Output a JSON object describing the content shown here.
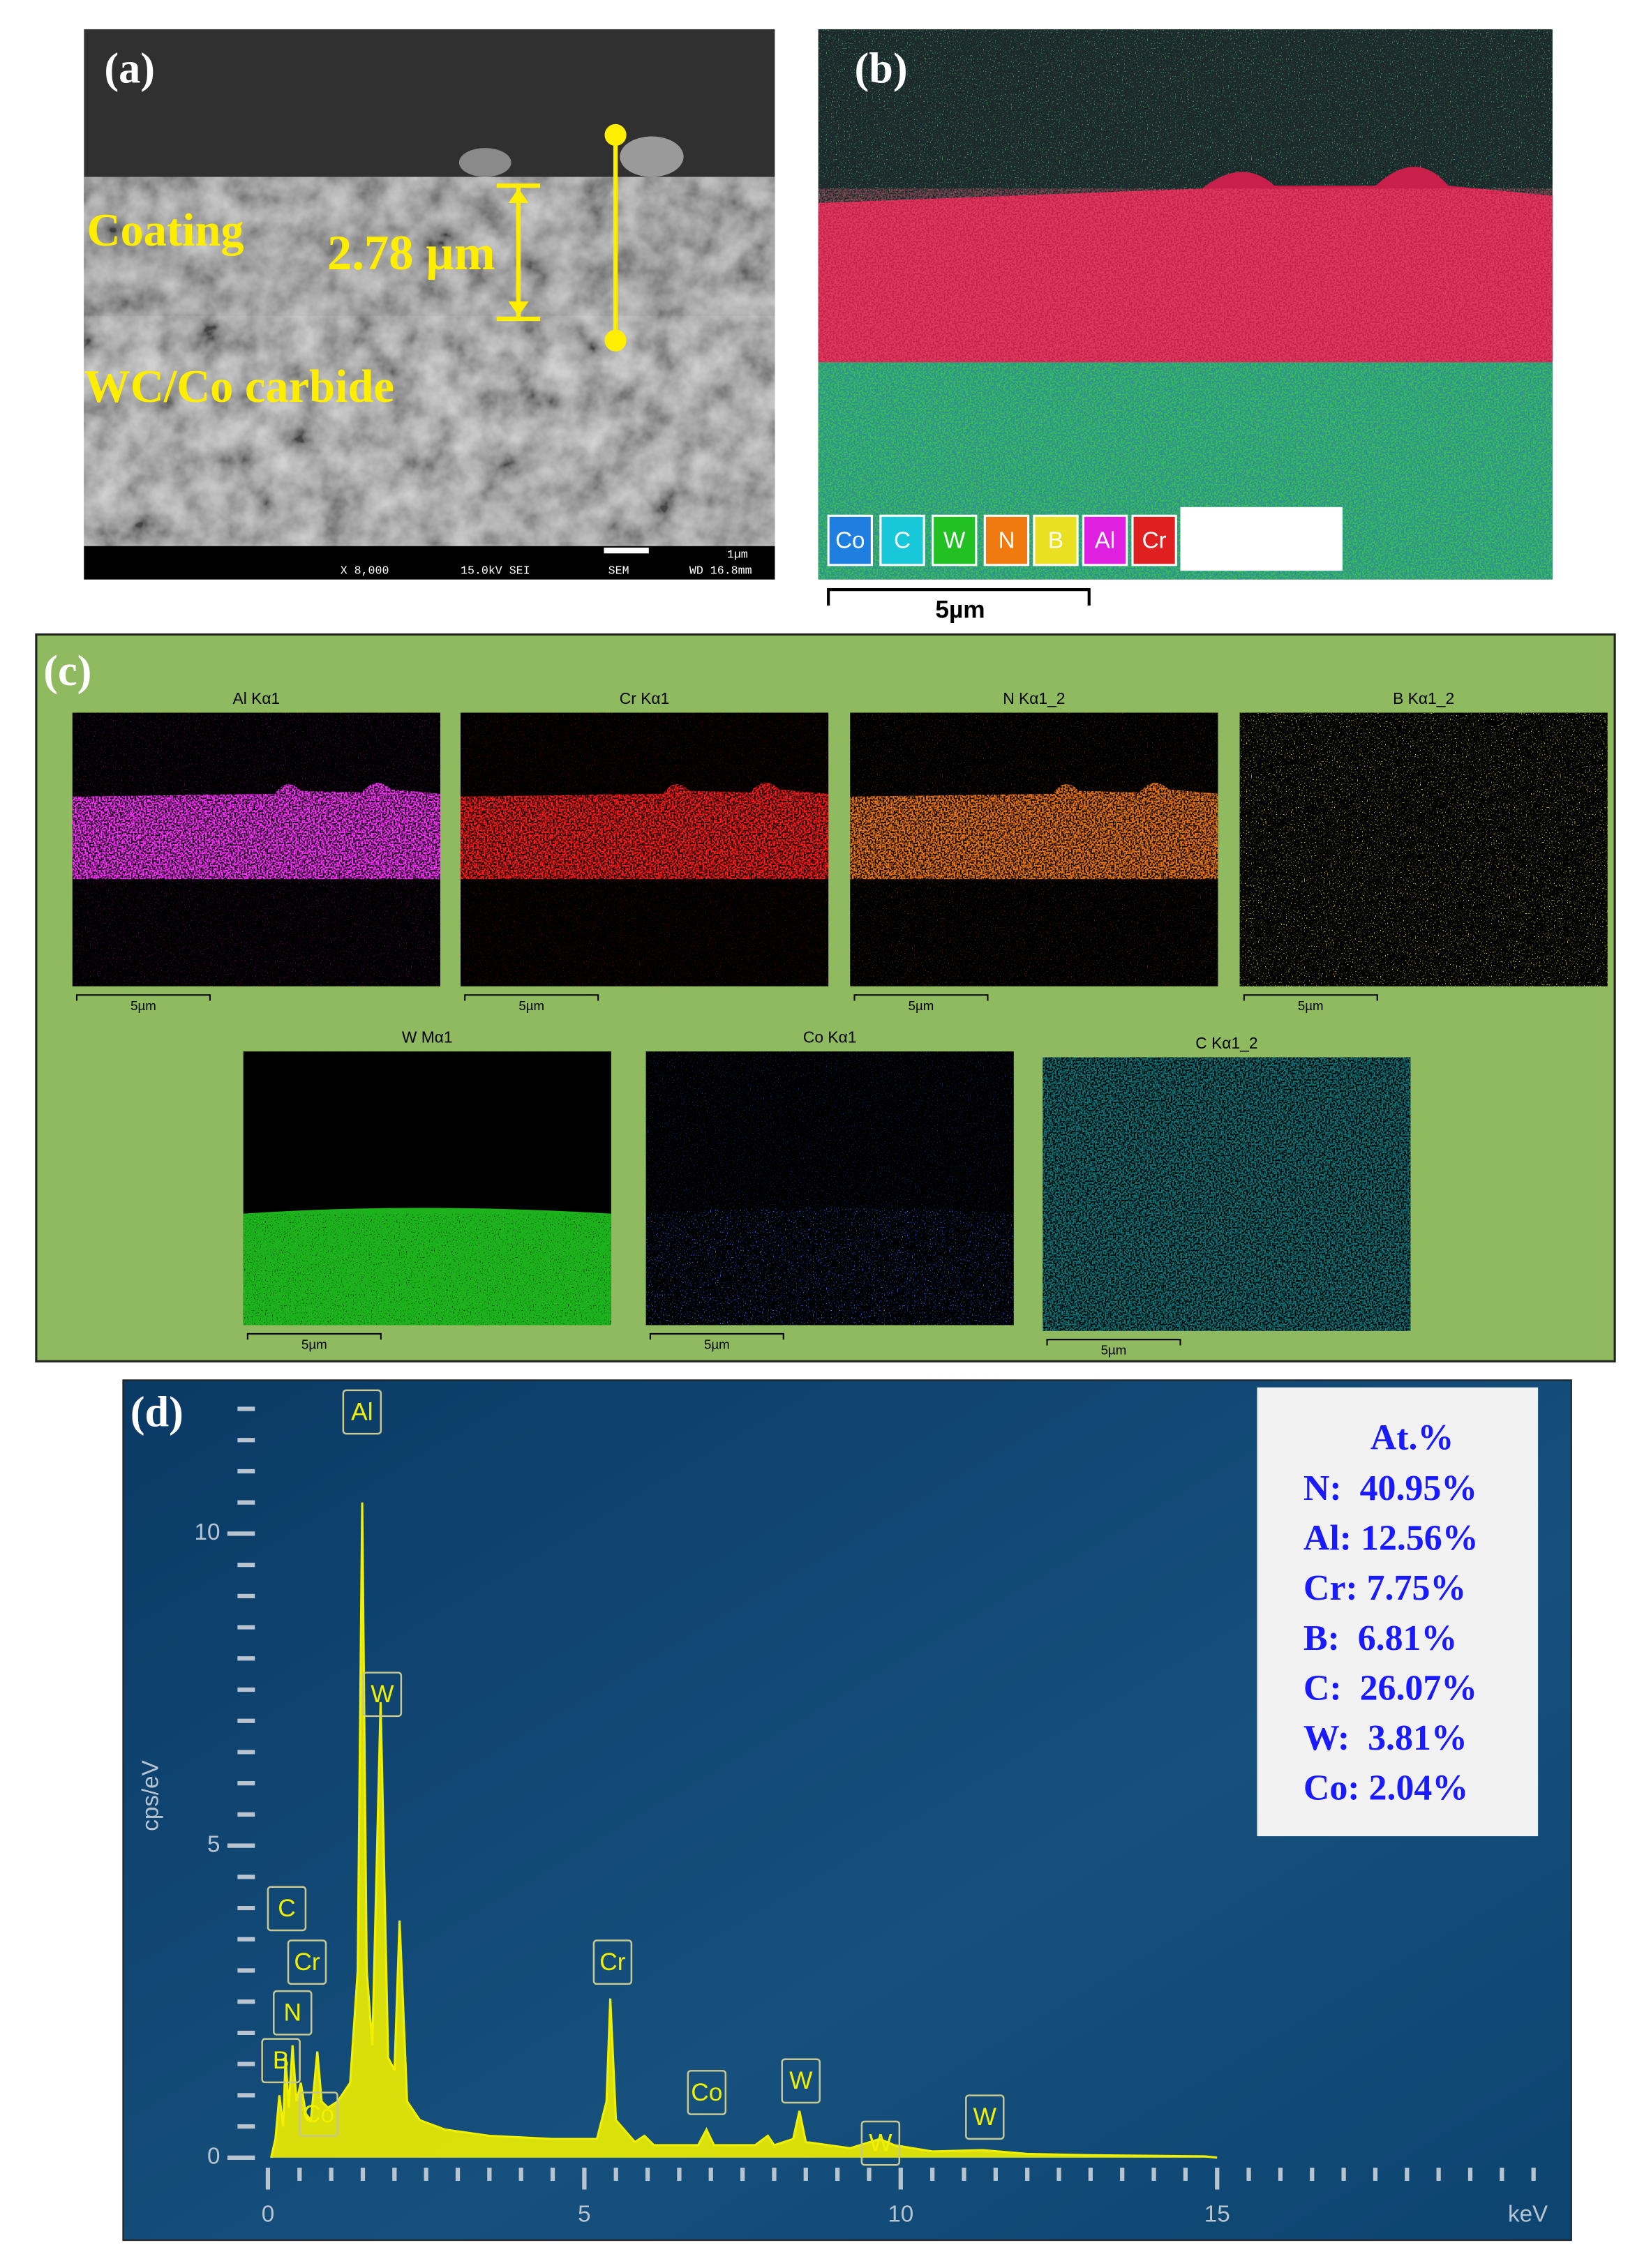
{
  "panels": {
    "a": {
      "label": "(a)",
      "coating": "Coating",
      "thickness": "2.78 µm",
      "substrate": "WC/Co carbide",
      "info_bar": [
        "X 8,000",
        "15.0kV SEI",
        "SEM",
        "1µm",
        "WD 16.8mm"
      ]
    },
    "b": {
      "label": "(b)",
      "legend": [
        {
          "name": "Co",
          "color": "#1e7fe0"
        },
        {
          "name": "C",
          "color": "#19c8d8"
        },
        {
          "name": "W",
          "color": "#22c022"
        },
        {
          "name": "N",
          "color": "#f07a10"
        },
        {
          "name": "B",
          "color": "#e8e020"
        },
        {
          "name": "Al",
          "color": "#e020e0"
        },
        {
          "name": "Cr",
          "color": "#e02020"
        }
      ],
      "scale": "5µm"
    },
    "c": {
      "label": "(c)",
      "maps": [
        {
          "title": "Al Kα1",
          "color": "#ff30ff",
          "scale": "5µm"
        },
        {
          "title": "Cr Kα1",
          "color": "#ff1a1a",
          "scale": "5µm"
        },
        {
          "title": "N Kα1_2",
          "color": "#f07818",
          "scale": "5µm"
        },
        {
          "title": "B Kα1_2",
          "color": "#d8d020",
          "scale": "5µm"
        },
        {
          "title": "W Mα1",
          "color": "#22d022",
          "scale": "5µm"
        },
        {
          "title": "Co Kα1",
          "color": "#2a70ff",
          "scale": "5µm"
        },
        {
          "title": "C Kα1_2",
          "color": "#20d0d8",
          "scale": "5µm"
        }
      ]
    }
  },
  "chart_data": {
    "type": "line",
    "label": "(d)",
    "y_label": "cps/eV",
    "x_unit": "keV",
    "color": "#f0f000",
    "x": [
      0.05,
      0.12,
      0.18,
      0.24,
      0.28,
      0.33,
      0.39,
      0.45,
      0.52,
      0.6,
      0.68,
      0.78,
      0.85,
      0.95,
      1.1,
      1.3,
      1.42,
      1.49,
      1.56,
      1.65,
      1.78,
      1.9,
      2.0,
      2.08,
      2.2,
      2.4,
      2.8,
      3.5,
      4.5,
      5.2,
      5.35,
      5.41,
      5.5,
      5.8,
      5.95,
      6.1,
      6.8,
      6.93,
      7.05,
      7.7,
      7.9,
      8.0,
      8.3,
      8.4,
      8.5,
      9.2,
      9.67,
      9.9,
      10.5,
      11.3,
      12,
      13,
      14,
      14.8,
      15
    ],
    "values": [
      0,
      0.3,
      1.0,
      0.5,
      1.6,
      0.8,
      1.8,
      0.9,
      1.2,
      0.7,
      0.6,
      1.7,
      0.9,
      0.8,
      0.9,
      1.2,
      3.0,
      10.5,
      3.0,
      1.8,
      7.3,
      1.6,
      1.4,
      3.8,
      0.9,
      0.6,
      0.45,
      0.35,
      0.3,
      0.3,
      0.9,
      2.55,
      0.6,
      0.25,
      0.35,
      0.2,
      0.2,
      0.45,
      0.2,
      0.2,
      0.35,
      0.2,
      0.3,
      0.75,
      0.25,
      0.15,
      0.3,
      0.2,
      0.1,
      0.12,
      0.06,
      0.04,
      0.03,
      0.02,
      0
    ],
    "xlim": [
      0,
      20.3
    ],
    "ylim": [
      0,
      12.4
    ],
    "xticks": [
      0,
      5,
      10,
      15
    ],
    "yticks": [
      0,
      5,
      10
    ],
    "xminorticks": [
      0.5,
      1,
      1.5,
      2,
      2.5,
      3,
      3.5,
      4,
      4.5,
      5.5,
      6,
      6.5,
      7,
      7.5,
      8,
      8.5,
      9,
      9.5,
      10.5,
      11,
      11.5,
      12,
      12.5,
      13,
      13.5,
      14,
      14.5,
      15.5,
      16,
      16.5,
      17,
      17.5,
      18,
      18.5,
      19,
      19.5,
      20
    ],
    "yminorticks": [
      0.5,
      1,
      1.5,
      2,
      2.5,
      3,
      3.5,
      4,
      4.5,
      5.5,
      6,
      6.5,
      7,
      7.5,
      8,
      8.5,
      9,
      9.5,
      10.5,
      11,
      11.5,
      12
    ],
    "peak_labels": [
      "Al",
      "W",
      "C",
      "Cr",
      "N",
      "B",
      "Co",
      "Cr",
      "Co",
      "W",
      "W",
      "W"
    ],
    "composition": {
      "title": "At.%",
      "rows": [
        "N:  40.95%",
        "Al: 12.56%",
        "Cr: 7.75%",
        "B:  6.81%",
        "C:  26.07%",
        "W:  3.81%",
        "Co: 2.04%"
      ]
    }
  }
}
